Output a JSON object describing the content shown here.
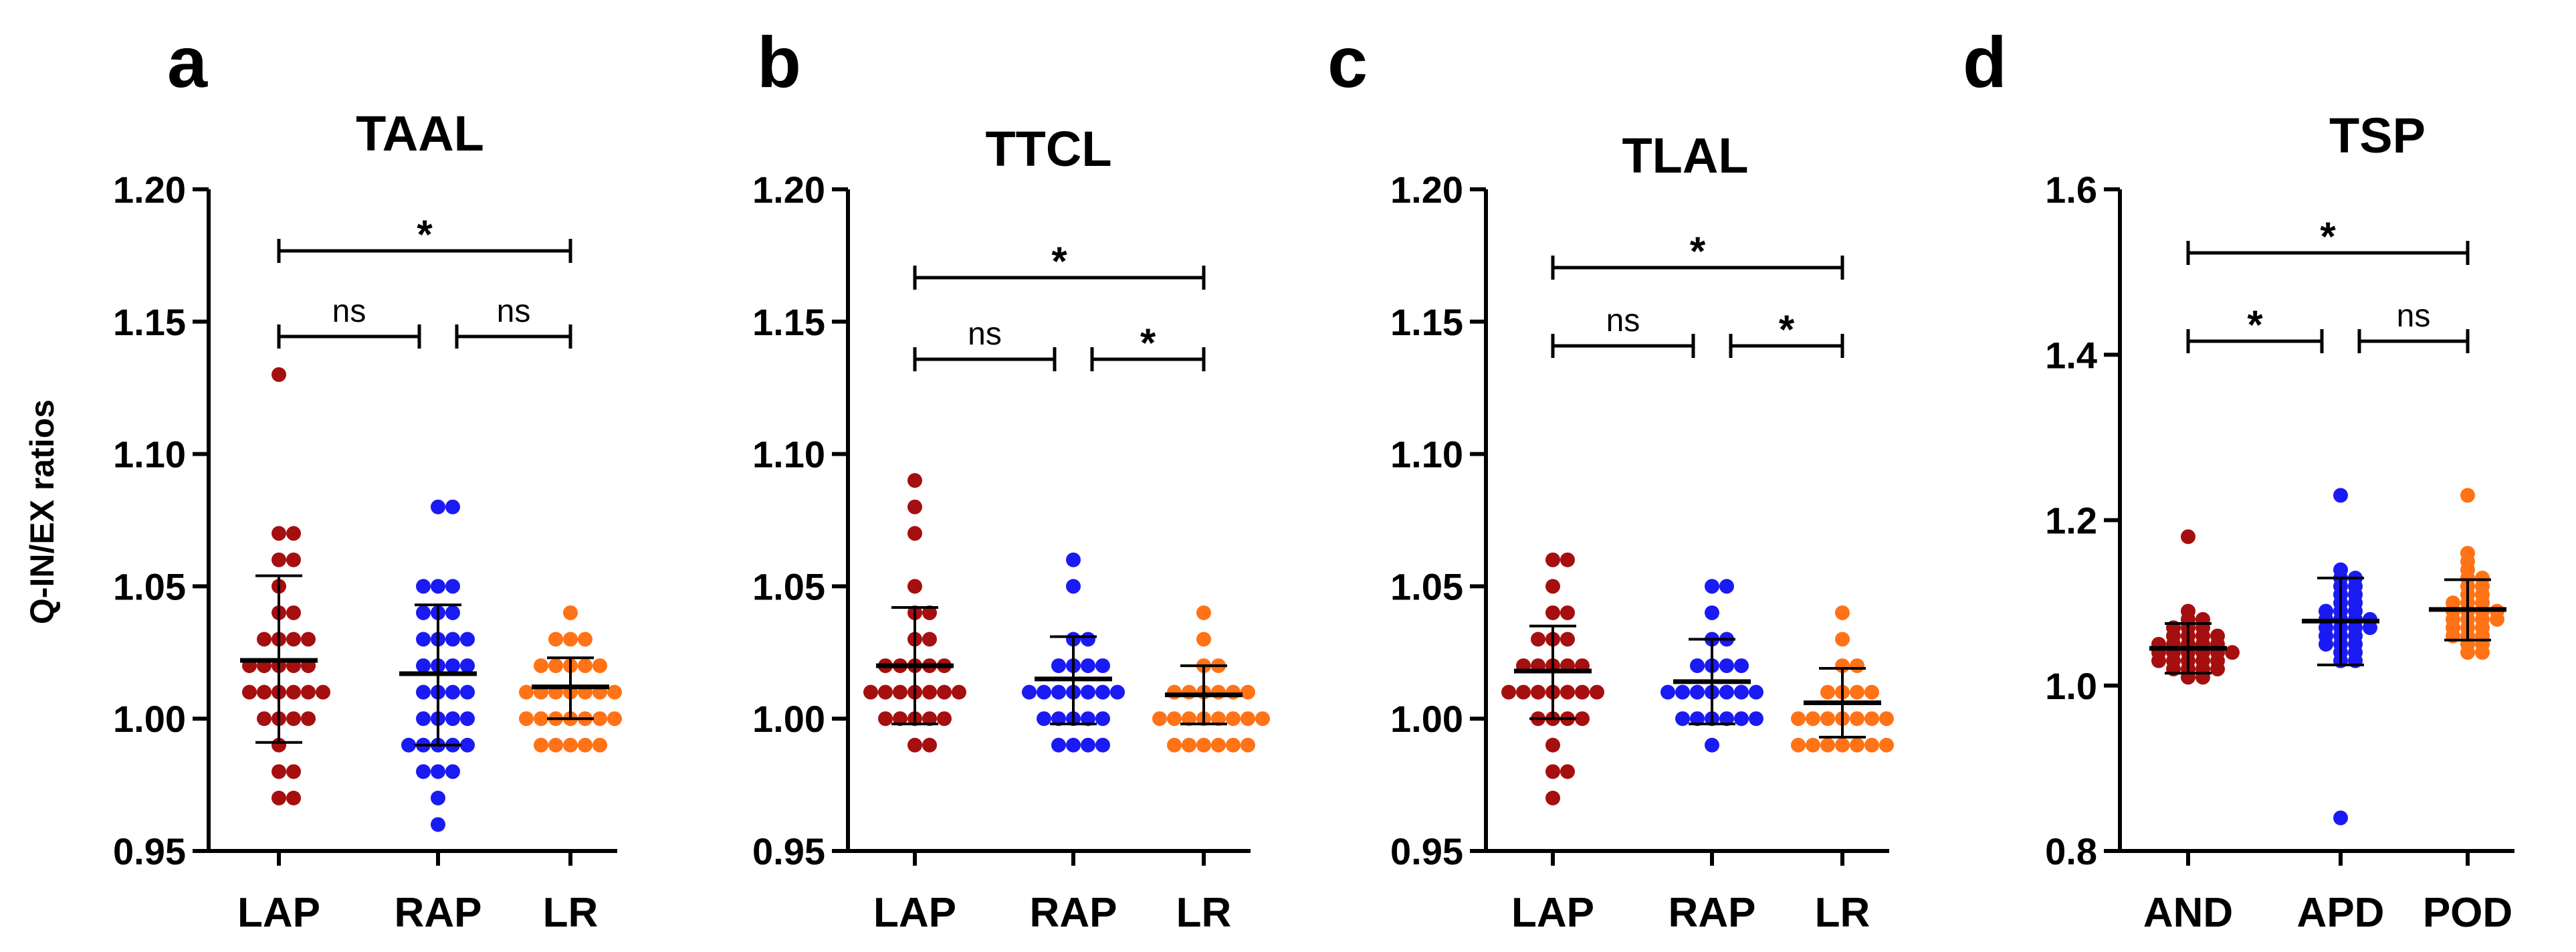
{
  "figure": {
    "ylabel": "Q-IN/EX ratios",
    "group_colors": [
      "#A50F0F",
      "#1A1AF2",
      "#FF7216"
    ]
  },
  "chart_data": [
    {
      "type": "scatter",
      "panel": "a",
      "title": "TAAL",
      "ylim": [
        0.95,
        1.2
      ],
      "yticks": [
        "0.95",
        "1.00",
        "1.05",
        "1.10",
        "1.15",
        "1.20"
      ],
      "yticks_values": [
        0.95,
        1.0,
        1.05,
        1.1,
        1.15,
        1.2
      ],
      "categories": [
        "LAP",
        "RAP",
        "LR"
      ],
      "series": [
        {
          "name": "LAP",
          "mean": 1.022,
          "sd_low": 0.991,
          "sd_high": 1.054,
          "values": [
            1.13,
            1.07,
            1.07,
            1.06,
            1.06,
            1.05,
            1.04,
            1.04,
            1.03,
            1.03,
            1.03,
            1.03,
            1.02,
            1.02,
            1.02,
            1.02,
            1.02,
            1.01,
            1.01,
            1.01,
            1.01,
            1.01,
            1.01,
            1.0,
            1.0,
            1.0,
            1.0,
            0.99,
            0.98,
            0.98,
            0.97,
            0.97
          ]
        },
        {
          "name": "RAP",
          "mean": 1.017,
          "sd_low": 0.99,
          "sd_high": 1.043,
          "values": [
            1.08,
            1.08,
            1.05,
            1.05,
            1.05,
            1.04,
            1.04,
            1.04,
            1.03,
            1.03,
            1.03,
            1.03,
            1.02,
            1.02,
            1.02,
            1.02,
            1.01,
            1.01,
            1.01,
            1.01,
            1.0,
            1.0,
            1.0,
            1.0,
            0.99,
            0.99,
            0.99,
            0.99,
            0.99,
            0.98,
            0.98,
            0.98,
            0.97,
            0.96
          ]
        },
        {
          "name": "LR",
          "mean": 1.012,
          "sd_low": 1.0,
          "sd_high": 1.023,
          "values": [
            1.04,
            1.03,
            1.03,
            1.03,
            1.02,
            1.02,
            1.02,
            1.02,
            1.02,
            1.01,
            1.01,
            1.01,
            1.01,
            1.01,
            1.01,
            1.01,
            1.0,
            1.0,
            1.0,
            1.0,
            1.0,
            1.0,
            1.0,
            0.99,
            0.99,
            0.99,
            0.99,
            0.99
          ]
        }
      ],
      "comparisons": [
        {
          "from": 0,
          "to": 1,
          "level": 1,
          "label": "ns"
        },
        {
          "from": 1,
          "to": 2,
          "level": 1,
          "label": "ns"
        },
        {
          "from": 0,
          "to": 2,
          "level": 2,
          "label": "*"
        }
      ]
    },
    {
      "type": "scatter",
      "panel": "b",
      "title": "TTCL",
      "ylim": [
        0.95,
        1.2
      ],
      "yticks": [
        "0.95",
        "1.00",
        "1.05",
        "1.10",
        "1.15",
        "1.20"
      ],
      "yticks_values": [
        0.95,
        1.0,
        1.05,
        1.1,
        1.15,
        1.2
      ],
      "categories": [
        "LAP",
        "RAP",
        "LR"
      ],
      "series": [
        {
          "name": "LAP",
          "mean": 1.02,
          "sd_low": 0.998,
          "sd_high": 1.042,
          "values": [
            1.09,
            1.08,
            1.07,
            1.05,
            1.04,
            1.04,
            1.03,
            1.03,
            1.02,
            1.02,
            1.02,
            1.02,
            1.02,
            1.01,
            1.01,
            1.01,
            1.01,
            1.01,
            1.01,
            1.01,
            1.0,
            1.0,
            1.0,
            1.0,
            1.0,
            0.99,
            0.99
          ]
        },
        {
          "name": "RAP",
          "mean": 1.015,
          "sd_low": 0.998,
          "sd_high": 1.031,
          "values": [
            1.06,
            1.05,
            1.03,
            1.03,
            1.02,
            1.02,
            1.02,
            1.02,
            1.01,
            1.01,
            1.01,
            1.01,
            1.01,
            1.01,
            1.01,
            1.0,
            1.0,
            1.0,
            1.0,
            1.0,
            0.99,
            0.99,
            0.99,
            0.99
          ]
        },
        {
          "name": "LR",
          "mean": 1.009,
          "sd_low": 0.998,
          "sd_high": 1.02,
          "values": [
            1.04,
            1.03,
            1.02,
            1.02,
            1.01,
            1.01,
            1.01,
            1.01,
            1.01,
            1.01,
            1.0,
            1.0,
            1.0,
            1.0,
            1.0,
            1.0,
            1.0,
            1.0,
            0.99,
            0.99,
            0.99,
            0.99,
            0.99,
            0.99
          ]
        }
      ],
      "comparisons": [
        {
          "from": 0,
          "to": 1,
          "level": 1,
          "label": "ns"
        },
        {
          "from": 1,
          "to": 2,
          "level": 1,
          "label": "*"
        },
        {
          "from": 0,
          "to": 2,
          "level": 2,
          "label": "*"
        }
      ]
    },
    {
      "type": "scatter",
      "panel": "c",
      "title": "TLAL",
      "ylim": [
        0.95,
        1.2
      ],
      "yticks": [
        "0.95",
        "1.00",
        "1.05",
        "1.10",
        "1.15",
        "1.20"
      ],
      "yticks_values": [
        0.95,
        1.0,
        1.05,
        1.1,
        1.15,
        1.2
      ],
      "categories": [
        "LAP",
        "RAP",
        "LR"
      ],
      "series": [
        {
          "name": "LAP",
          "mean": 1.018,
          "sd_low": 1.0,
          "sd_high": 1.035,
          "values": [
            1.06,
            1.06,
            1.05,
            1.04,
            1.04,
            1.03,
            1.03,
            1.03,
            1.02,
            1.02,
            1.02,
            1.02,
            1.02,
            1.01,
            1.01,
            1.01,
            1.01,
            1.01,
            1.01,
            1.01,
            1.0,
            1.0,
            1.0,
            1.0,
            0.99,
            0.98,
            0.98,
            0.97
          ]
        },
        {
          "name": "RAP",
          "mean": 1.014,
          "sd_low": 0.998,
          "sd_high": 1.03,
          "values": [
            1.05,
            1.05,
            1.04,
            1.03,
            1.03,
            1.02,
            1.02,
            1.02,
            1.02,
            1.01,
            1.01,
            1.01,
            1.01,
            1.01,
            1.01,
            1.01,
            1.0,
            1.0,
            1.0,
            1.0,
            1.0,
            1.0,
            0.99
          ]
        },
        {
          "name": "LR",
          "mean": 1.006,
          "sd_low": 0.993,
          "sd_high": 1.019,
          "values": [
            1.04,
            1.03,
            1.02,
            1.02,
            1.01,
            1.01,
            1.01,
            1.01,
            1.0,
            1.0,
            1.0,
            1.0,
            1.0,
            1.0,
            1.0,
            0.99,
            0.99,
            0.99,
            0.99,
            0.99,
            0.99,
            0.99
          ]
        }
      ],
      "comparisons": [
        {
          "from": 0,
          "to": 1,
          "level": 1,
          "label": "ns"
        },
        {
          "from": 1,
          "to": 2,
          "level": 1,
          "label": "*"
        },
        {
          "from": 0,
          "to": 2,
          "level": 2,
          "label": "*"
        }
      ]
    },
    {
      "type": "scatter",
      "panel": "d",
      "title": "TSP",
      "ylim": [
        0.8,
        1.6
      ],
      "yticks": [
        "0.8",
        "1.0",
        "1.2",
        "1.4",
        "1.6"
      ],
      "yticks_values": [
        0.8,
        1.0,
        1.2,
        1.4,
        1.6
      ],
      "categories": [
        "AND",
        "APD",
        "POD"
      ],
      "series": [
        {
          "name": "AND",
          "mean": 1.045,
          "sd_low": 1.015,
          "sd_high": 1.075,
          "values": [
            1.18,
            1.09,
            1.08,
            1.08,
            1.07,
            1.07,
            1.07,
            1.06,
            1.06,
            1.06,
            1.06,
            1.05,
            1.05,
            1.05,
            1.05,
            1.05,
            1.04,
            1.04,
            1.04,
            1.04,
            1.04,
            1.04,
            1.03,
            1.03,
            1.03,
            1.03,
            1.03,
            1.02,
            1.02,
            1.02,
            1.02,
            1.01,
            1.01
          ]
        },
        {
          "name": "APD",
          "mean": 1.078,
          "sd_low": 1.025,
          "sd_high": 1.13,
          "values": [
            1.23,
            1.14,
            1.13,
            1.13,
            1.12,
            1.12,
            1.11,
            1.11,
            1.1,
            1.1,
            1.09,
            1.09,
            1.09,
            1.08,
            1.08,
            1.08,
            1.08,
            1.07,
            1.07,
            1.07,
            1.07,
            1.06,
            1.06,
            1.06,
            1.05,
            1.05,
            1.05,
            1.04,
            1.04,
            1.03,
            1.03,
            0.84
          ]
        },
        {
          "name": "POD",
          "mean": 1.092,
          "sd_low": 1.055,
          "sd_high": 1.128,
          "values": [
            1.23,
            1.16,
            1.15,
            1.14,
            1.13,
            1.13,
            1.12,
            1.12,
            1.11,
            1.11,
            1.1,
            1.1,
            1.1,
            1.09,
            1.09,
            1.09,
            1.09,
            1.08,
            1.08,
            1.08,
            1.08,
            1.07,
            1.07,
            1.07,
            1.06,
            1.06,
            1.06,
            1.05,
            1.05,
            1.04,
            1.04
          ]
        }
      ],
      "comparisons": [
        {
          "from": 0,
          "to": 1,
          "level": 1,
          "label": "*"
        },
        {
          "from": 1,
          "to": 2,
          "level": 1,
          "label": "ns"
        },
        {
          "from": 0,
          "to": 2,
          "level": 2,
          "label": "*"
        }
      ]
    }
  ]
}
